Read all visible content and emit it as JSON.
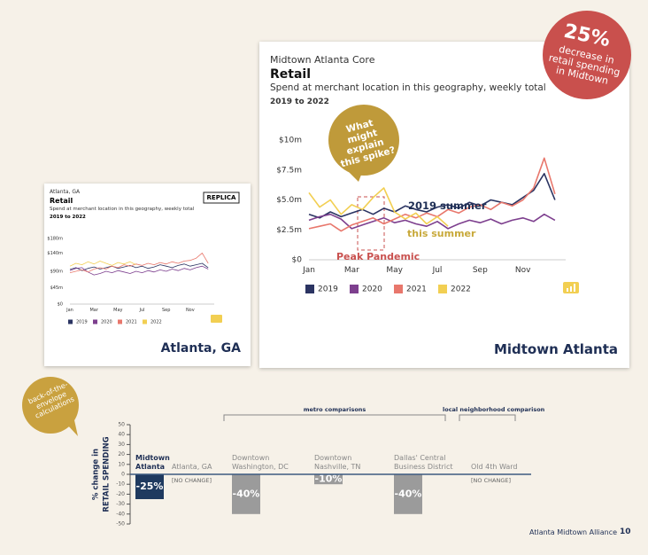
{
  "badge": {
    "value": "25%",
    "text": "decrease in retail spending in Midtown"
  },
  "chart_data": [
    {
      "type": "line",
      "supertitle": "Atlanta, GA",
      "title": "Retail",
      "subtitle": "Spend at merchant location in this geography, weekly total",
      "period": "2019 to 2022",
      "tag": "REPLICA",
      "caption": "Atlanta, GA",
      "x": [
        0,
        0.5,
        1,
        1.5,
        2,
        2.5,
        3,
        3.5,
        4,
        4.5,
        5,
        5.5,
        6,
        6.5,
        7,
        7.5,
        8,
        8.5,
        9,
        9.5,
        10,
        10.5,
        11,
        11.5
      ],
      "xlim": [
        0,
        12
      ],
      "xticks": [
        {
          "value": 0,
          "label": "Jan"
        },
        {
          "value": 2,
          "label": "Mar"
        },
        {
          "value": 4,
          "label": "May"
        },
        {
          "value": 6,
          "label": "Jul"
        },
        {
          "value": 8,
          "label": "Sep"
        },
        {
          "value": 10,
          "label": "Nov"
        }
      ],
      "ylim": [
        0,
        180
      ],
      "yticks": [
        {
          "value": 0,
          "label": "$0"
        },
        {
          "value": 45,
          "label": "$45m"
        },
        {
          "value": 90,
          "label": "$90m"
        },
        {
          "value": 140,
          "label": "$140m"
        },
        {
          "value": 180,
          "label": "$180m"
        }
      ],
      "series": [
        {
          "name": "2019",
          "color": "#2b3462",
          "values": [
            95,
            100,
            92,
            98,
            102,
            96,
            100,
            104,
            98,
            102,
            106,
            100,
            104,
            98,
            102,
            108,
            104,
            100,
            106,
            110,
            104,
            108,
            112,
            100
          ]
        },
        {
          "name": "2020",
          "color": "#7d3f8e",
          "values": [
            92,
            98,
            100,
            88,
            80,
            84,
            90,
            86,
            92,
            88,
            84,
            90,
            86,
            92,
            88,
            94,
            90,
            96,
            92,
            98,
            94,
            100,
            104,
            96
          ]
        },
        {
          "name": "2021",
          "color": "#e8776c",
          "values": [
            86,
            90,
            94,
            88,
            96,
            100,
            96,
            104,
            100,
            108,
            104,
            110,
            106,
            112,
            108,
            114,
            110,
            116,
            112,
            118,
            120,
            126,
            140,
            112
          ]
        },
        {
          "name": "2022",
          "color": "#f2cf52",
          "values": [
            104,
            112,
            108,
            116,
            110,
            118,
            112,
            106,
            114,
            110,
            116,
            108,
            null,
            null,
            null,
            null,
            null,
            null,
            null,
            null,
            null,
            null,
            null,
            null
          ]
        }
      ]
    },
    {
      "type": "line",
      "supertitle": "Midtown Atlanta Core",
      "title": "Retail",
      "subtitle": "Spend at merchant location in this geography, weekly total",
      "period": "2019 to 2022",
      "caption": "Midtown Atlanta",
      "annotations": [
        "2019 summer",
        "this summer",
        "Peak Pandemic",
        "What might explain this spike?"
      ],
      "x": [
        0,
        0.5,
        1,
        1.5,
        2,
        2.5,
        3,
        3.5,
        4,
        4.5,
        5,
        5.5,
        6,
        6.5,
        7,
        7.5,
        8,
        8.5,
        9,
        9.5,
        10,
        10.5,
        11,
        11.5
      ],
      "xlim": [
        0,
        12
      ],
      "xticks": [
        {
          "value": 0,
          "label": "Jan"
        },
        {
          "value": 2,
          "label": "Mar"
        },
        {
          "value": 4,
          "label": "May"
        },
        {
          "value": 6,
          "label": "Jul"
        },
        {
          "value": 8,
          "label": "Sep"
        },
        {
          "value": 10,
          "label": "Nov"
        }
      ],
      "ylim": [
        0,
        10
      ],
      "yticks": [
        {
          "value": 0,
          "label": "$0"
        },
        {
          "value": 2.5,
          "label": "$2.5m"
        },
        {
          "value": 5,
          "label": "$5.0m"
        },
        {
          "value": 7.5,
          "label": "$7.5m"
        },
        {
          "value": 10,
          "label": "$10m"
        }
      ],
      "series": [
        {
          "name": "2019",
          "color": "#2b3462",
          "values": [
            3.8,
            3.5,
            4.0,
            3.6,
            3.9,
            4.2,
            3.8,
            4.3,
            4.0,
            4.5,
            4.2,
            4.0,
            4.4,
            4.6,
            4.3,
            4.8,
            4.5,
            5.0,
            4.8,
            4.6,
            5.2,
            5.8,
            7.2,
            5.0
          ]
        },
        {
          "name": "2020",
          "color": "#7d3f8e",
          "values": [
            3.3,
            3.6,
            3.8,
            3.4,
            2.6,
            2.9,
            3.2,
            3.5,
            3.1,
            3.3,
            3.0,
            2.8,
            3.2,
            2.6,
            3.0,
            3.3,
            3.1,
            3.4,
            3.0,
            3.3,
            3.5,
            3.2,
            3.8,
            3.3
          ]
        },
        {
          "name": "2021",
          "color": "#e8776c",
          "values": [
            2.6,
            2.8,
            3.0,
            2.4,
            2.9,
            3.2,
            3.5,
            3.0,
            3.4,
            3.8,
            3.5,
            3.9,
            3.6,
            4.2,
            3.9,
            4.4,
            4.6,
            4.2,
            4.8,
            4.5,
            5.0,
            6.0,
            8.5,
            5.5
          ]
        },
        {
          "name": "2022",
          "color": "#f2cf52",
          "values": [
            5.6,
            4.4,
            5.0,
            3.8,
            4.6,
            4.2,
            5.2,
            6.0,
            4.0,
            3.4,
            3.9,
            3.0,
            3.6,
            2.8,
            null,
            null,
            null,
            null,
            null,
            null,
            null,
            null,
            null,
            null
          ]
        }
      ]
    },
    {
      "type": "bar",
      "ylabel": [
        "% change in",
        "RETAIL SPENDING"
      ],
      "note": "back-of-the-envelope calculations",
      "groups": [
        "metro comparisons",
        "local neighborhood comparison"
      ],
      "categories": [
        "Midtown Atlanta",
        "Atlanta, GA",
        "Downtown Washington, DC",
        "Downtown Nashville, TN",
        "Dallas' Central Business District",
        "Old 4th Ward"
      ],
      "values": [
        -25,
        0,
        -40,
        -10,
        -40,
        0
      ],
      "value_labels": [
        "-25%",
        "[NO CHANGE]",
        "-40%",
        "-10%",
        "-40%",
        "[NO CHANGE]"
      ],
      "colors": [
        "#1f3a5f",
        "#9b9b9b",
        "#9b9b9b",
        "#9b9b9b",
        "#9b9b9b",
        "#9b9b9b"
      ],
      "ylim": [
        -50,
        50
      ],
      "yticks": [
        50,
        40,
        30,
        20,
        10,
        0,
        -10,
        -20,
        -30,
        -40,
        -50
      ]
    }
  ],
  "footer": {
    "text": "Atlanta Midtown Alliance",
    "page": "10"
  }
}
